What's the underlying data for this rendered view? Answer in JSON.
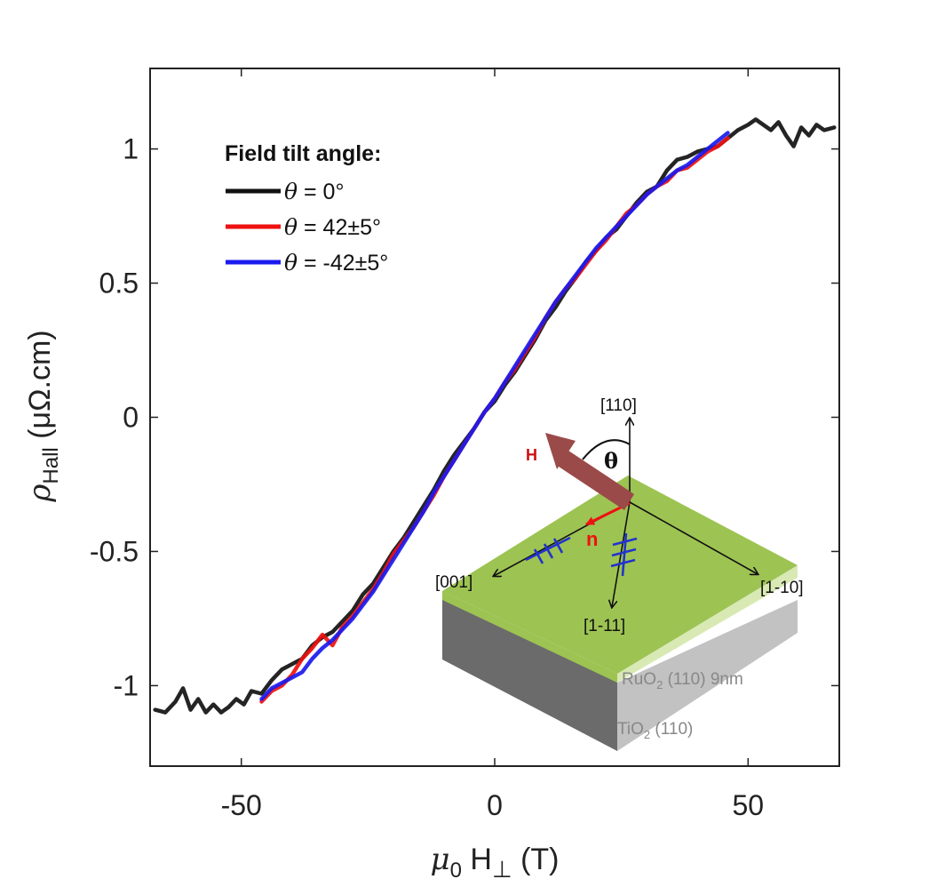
{
  "chart_data": {
    "type": "line",
    "title": "",
    "xlabel": "μ0 H⊥ (T)",
    "ylabel": "ρHall (μΩ.cm)",
    "xlim": [
      -68,
      68
    ],
    "ylim": [
      -1.3,
      1.3
    ],
    "x_ticks": [
      -50,
      0,
      50
    ],
    "x_tick_labels": [
      "-50",
      "0",
      "50"
    ],
    "y_ticks": [
      1,
      0.5,
      0,
      -0.5,
      -1
    ],
    "y_tick_labels": [
      "1",
      "0.5",
      "0",
      "-0.5",
      "-1"
    ],
    "grid": false,
    "legend": {
      "title": "Field tilt angle:",
      "position": "top-left"
    },
    "series": [
      {
        "name": "θ = 0°",
        "theta": "θ",
        "value_text": " = 0°",
        "color": "#111111",
        "x": [
          -67,
          -65,
          -63,
          -61.5,
          -60,
          -58.5,
          -57,
          -55.5,
          -54,
          -52.5,
          -51,
          -49.5,
          -48,
          -46,
          -44,
          -42,
          -40,
          -38,
          -36,
          -34,
          -32,
          -30,
          -28,
          -26,
          -24,
          -22,
          -20,
          -18,
          -16,
          -14,
          -12,
          -10,
          -8,
          -6,
          -4,
          -2,
          0,
          2,
          4,
          6,
          8,
          10,
          12,
          14,
          16,
          18,
          20,
          22,
          24,
          26,
          28,
          30,
          32,
          34,
          36,
          38,
          40,
          42,
          44,
          46,
          48,
          50,
          51.5,
          53,
          54.5,
          56,
          57.5,
          59,
          60.5,
          62,
          63.5,
          65,
          67
        ],
        "y": [
          -1.09,
          -1.1,
          -1.06,
          -1.01,
          -1.09,
          -1.05,
          -1.1,
          -1.07,
          -1.1,
          -1.08,
          -1.05,
          -1.07,
          -1.02,
          -1.03,
          -0.98,
          -0.94,
          -0.92,
          -0.9,
          -0.85,
          -0.82,
          -0.8,
          -0.76,
          -0.72,
          -0.66,
          -0.62,
          -0.56,
          -0.5,
          -0.45,
          -0.39,
          -0.33,
          -0.27,
          -0.2,
          -0.14,
          -0.09,
          -0.04,
          0.02,
          0.06,
          0.12,
          0.17,
          0.23,
          0.29,
          0.36,
          0.41,
          0.47,
          0.52,
          0.58,
          0.62,
          0.67,
          0.7,
          0.75,
          0.8,
          0.84,
          0.86,
          0.92,
          0.96,
          0.97,
          0.99,
          1.0,
          1.01,
          1.04,
          1.07,
          1.09,
          1.11,
          1.09,
          1.07,
          1.1,
          1.05,
          1.01,
          1.08,
          1.05,
          1.09,
          1.07,
          1.08
        ]
      },
      {
        "name": "θ = 42±5°",
        "theta": "θ",
        "value_text": " = 42±5°",
        "color": "#ee1111",
        "x": [
          -46,
          -44,
          -42,
          -40,
          -38,
          -36,
          -34,
          -32,
          -30,
          -28,
          -26,
          -24,
          -22,
          -20,
          -18,
          -16,
          -14,
          -12,
          -10,
          -8,
          -6,
          -4,
          -2,
          0,
          2,
          4,
          6,
          8,
          10,
          12,
          14,
          16,
          18,
          20,
          22,
          24,
          26,
          28,
          30,
          32,
          34,
          36,
          38,
          40,
          42,
          44,
          46
        ],
        "y": [
          -1.06,
          -1.02,
          -1.0,
          -0.96,
          -0.9,
          -0.86,
          -0.81,
          -0.85,
          -0.78,
          -0.74,
          -0.69,
          -0.64,
          -0.58,
          -0.51,
          -0.46,
          -0.41,
          -0.35,
          -0.29,
          -0.22,
          -0.16,
          -0.1,
          -0.04,
          0.02,
          0.07,
          0.13,
          0.18,
          0.24,
          0.3,
          0.37,
          0.43,
          0.48,
          0.52,
          0.57,
          0.62,
          0.66,
          0.71,
          0.76,
          0.79,
          0.83,
          0.86,
          0.88,
          0.92,
          0.93,
          0.96,
          0.99,
          1.01,
          1.04
        ]
      },
      {
        "name": "θ = -42±5°",
        "theta": "θ",
        "value_text": " = -42±5°",
        "color": "#1a1aee",
        "x": [
          -46,
          -44,
          -42,
          -40,
          -38,
          -36,
          -34,
          -32,
          -30,
          -28,
          -26,
          -24,
          -22,
          -20,
          -18,
          -16,
          -14,
          -12,
          -10,
          -8,
          -6,
          -4,
          -2,
          0,
          2,
          4,
          6,
          8,
          10,
          12,
          14,
          16,
          18,
          20,
          22,
          24,
          26,
          28,
          30,
          32,
          34,
          36,
          38,
          40,
          42,
          44,
          46
        ],
        "y": [
          -1.05,
          -1.01,
          -0.99,
          -0.97,
          -0.95,
          -0.9,
          -0.86,
          -0.83,
          -0.79,
          -0.75,
          -0.7,
          -0.65,
          -0.59,
          -0.53,
          -0.47,
          -0.41,
          -0.35,
          -0.28,
          -0.22,
          -0.16,
          -0.1,
          -0.04,
          0.02,
          0.07,
          0.13,
          0.19,
          0.25,
          0.31,
          0.37,
          0.43,
          0.48,
          0.53,
          0.58,
          0.63,
          0.67,
          0.71,
          0.75,
          0.79,
          0.83,
          0.86,
          0.89,
          0.92,
          0.94,
          0.97,
          1.0,
          1.03,
          1.06
        ]
      }
    ]
  },
  "axis_labels": {
    "y_main": "ρ",
    "y_sub": "Hall",
    "y_unit": "(μΩ.cm)",
    "x_main": "μ",
    "x_sub": "0",
    "x_rest": "H",
    "x_perp": "⊥",
    "x_unit": "(T)"
  },
  "inset": {
    "field_label": "H",
    "angle_label": "θ",
    "normal_label": "n",
    "axis_110": "[110]",
    "axis_001": "[001]",
    "axis_1m10": "[1-10]",
    "axis_1m11": "[1-11]",
    "film_prefix": "RuO",
    "film_sub": "2",
    "film_suffix": " (110) 9nm",
    "substrate_prefix": "TiO",
    "substrate_sub": "2",
    "substrate_suffix": " (110)",
    "colors": {
      "film_top": "#9dc353",
      "film_side_light": "#d8e9b4",
      "substrate_front": "#6b6b6b",
      "substrate_right": "#c2c2c2",
      "field_arrow": "#9a4a48",
      "normal_arrow": "#ee1111",
      "domain_marks": "#2233cc"
    }
  }
}
